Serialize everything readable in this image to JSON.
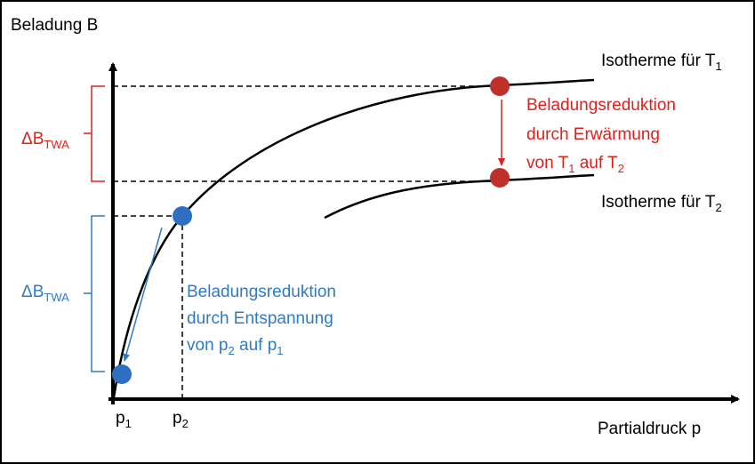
{
  "axes": {
    "y_label": "Beladung B",
    "x_label": "Partialdruck p"
  },
  "isotherms": [
    {
      "label": "Isotherme für T",
      "subscript": "1"
    },
    {
      "label": "Isotherme für T",
      "subscript": "2"
    }
  ],
  "ticks": [
    {
      "label": "p",
      "subscript": "1"
    },
    {
      "label": "p",
      "subscript": "2"
    }
  ],
  "delta_labels": [
    {
      "label": "ΔB",
      "subscript": "TWA"
    },
    {
      "label": "ΔB",
      "subscript": "TWA"
    }
  ],
  "annotations": [
    {
      "lines": [
        "Beladungsreduktion",
        "durch Erwärmung"
      ],
      "last_line": [
        "von T",
        "1",
        " auf T",
        "2"
      ]
    },
    {
      "lines": [
        "Beladungsreduktion",
        "durch Entspannung"
      ],
      "last_line": [
        "von p",
        "2",
        " auf p",
        "1"
      ]
    }
  ]
}
